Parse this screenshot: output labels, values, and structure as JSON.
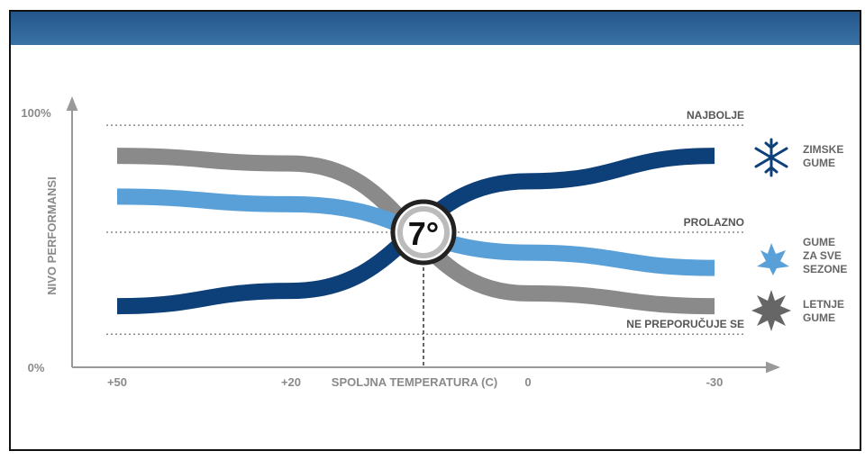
{
  "chart_data": {
    "type": "line",
    "y_axis_label": "NIVO PERFORMANSI",
    "x_axis_label": "SPOLJNA TEMPERATURA (C)",
    "categories": [
      "+50",
      "+20",
      "0",
      "-30"
    ],
    "ylim": [
      0,
      100
    ],
    "yticks": [
      {
        "value": 0,
        "label": "0%"
      },
      {
        "value": 100,
        "label": "100%"
      }
    ],
    "marker_label": "7°",
    "reference_lines": [
      {
        "label": "NAJBOLJE",
        "value": 95
      },
      {
        "label": "PROLAZNO",
        "value": 53
      },
      {
        "label": "NE PREPORUČUJE SE",
        "value": 13
      }
    ],
    "series": [
      {
        "name": "ZIMSKE GUME",
        "color": "#0d3f78",
        "values": [
          24,
          30,
          73,
          83
        ]
      },
      {
        "name": "GUME ZA SVE SEZONE",
        "color": "#5aa0d8",
        "values": [
          67,
          64,
          45,
          39
        ]
      },
      {
        "name": "LETNJE GUME",
        "color": "#8a8a8a",
        "values": [
          83,
          80,
          29,
          24
        ]
      }
    ]
  }
}
